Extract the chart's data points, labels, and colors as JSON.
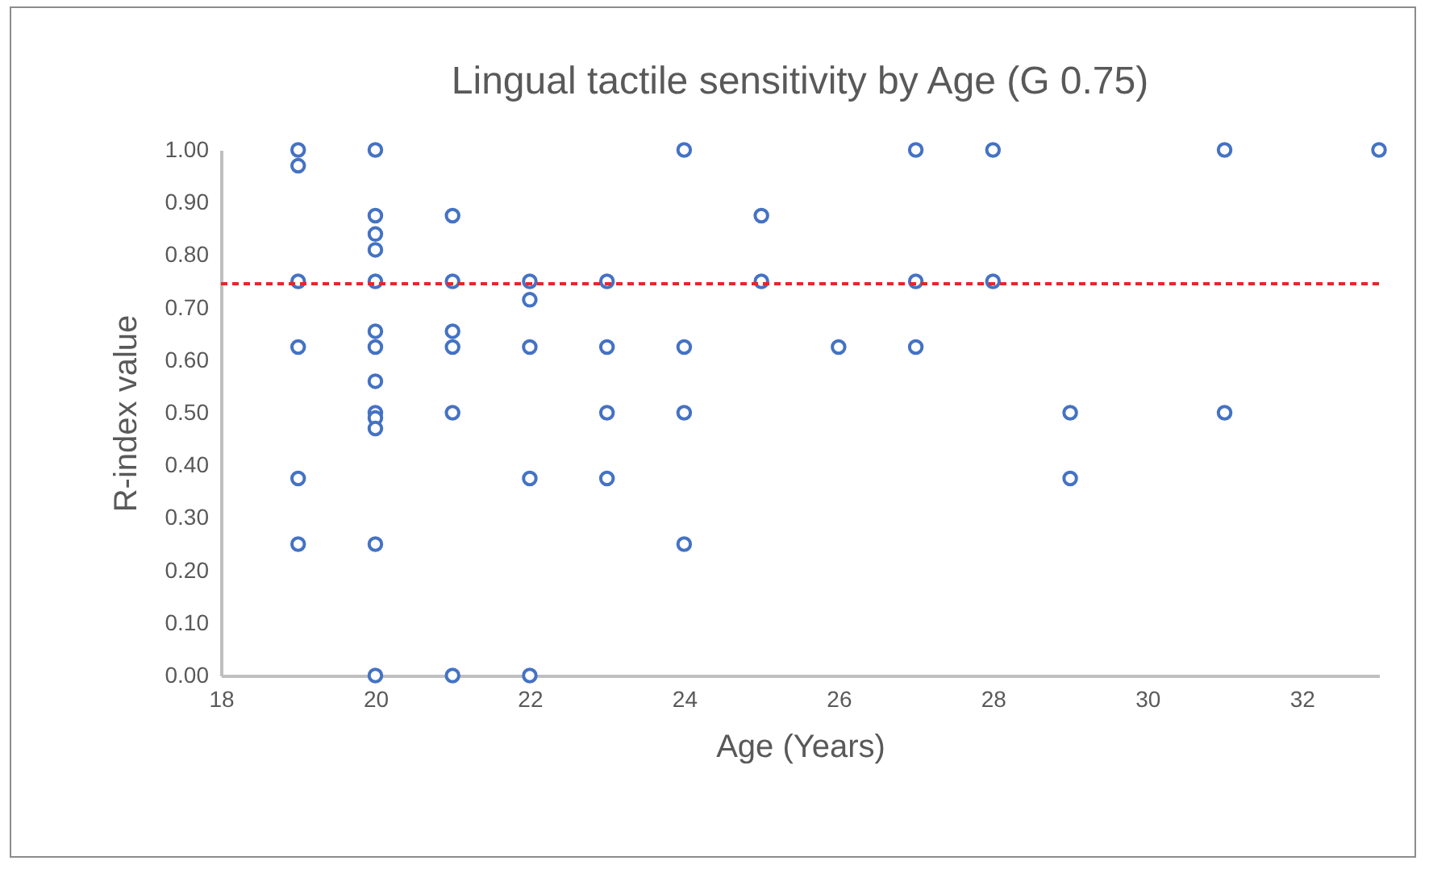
{
  "chart_data": {
    "type": "scatter",
    "title": "Lingual tactile sensitivity by Age (G 0.75)",
    "xlabel": "Age (Years)",
    "ylabel": "R-index value",
    "xlim": [
      18,
      33
    ],
    "xticks": [
      18,
      20,
      22,
      24,
      26,
      28,
      30,
      32
    ],
    "ylim": [
      0,
      1
    ],
    "yticks": [
      {
        "value": 0,
        "label": "0.00"
      },
      {
        "value": 0.1,
        "label": "0.10"
      },
      {
        "value": 0.2,
        "label": "0.20"
      },
      {
        "value": 0.3,
        "label": "0.30"
      },
      {
        "value": 0.4,
        "label": "0.40"
      },
      {
        "value": 0.5,
        "label": "0.50"
      },
      {
        "value": 0.6,
        "label": "0.60"
      },
      {
        "value": 0.7,
        "label": "0.70"
      },
      {
        "value": 0.8,
        "label": "0.80"
      },
      {
        "value": 0.9,
        "label": "0.90"
      },
      {
        "value": 1,
        "label": "1.00"
      }
    ],
    "marker": "circle",
    "grid": false,
    "x": [
      19,
      19,
      19,
      19,
      19,
      19,
      20,
      20,
      20,
      20,
      20,
      20,
      20,
      20,
      20,
      20,
      20,
      20,
      20,
      21,
      21,
      21,
      21,
      21,
      21,
      22,
      22,
      22,
      22,
      22,
      23,
      23,
      23,
      23,
      24,
      24,
      24,
      24,
      25,
      25,
      26,
      27,
      27,
      27,
      28,
      28,
      29,
      29,
      31,
      31,
      33
    ],
    "series": [
      {
        "color": "#4472c4",
        "values": [
          1.0,
          0.97,
          0.75,
          0.625,
          0.375,
          0.25,
          1.0,
          0.875,
          0.84,
          0.81,
          0.75,
          0.655,
          0.625,
          0.56,
          0.5,
          0.49,
          0.47,
          0.25,
          0,
          0.875,
          0.75,
          0.655,
          0.625,
          0.5,
          0,
          0.75,
          0.715,
          0.625,
          0.375,
          0,
          0.75,
          0.625,
          0.5,
          0.375,
          1.0,
          0.625,
          0.5,
          0.25,
          0.875,
          0.75,
          0.625,
          1.0,
          0.75,
          0.625,
          1.0,
          0.75,
          0.5,
          0.375,
          1.0,
          0.5,
          1.0
        ]
      }
    ],
    "ref_lines": [
      {
        "axis": "y",
        "value": 0.745,
        "color": "#e8262a",
        "line_style": "dashed"
      }
    ]
  }
}
